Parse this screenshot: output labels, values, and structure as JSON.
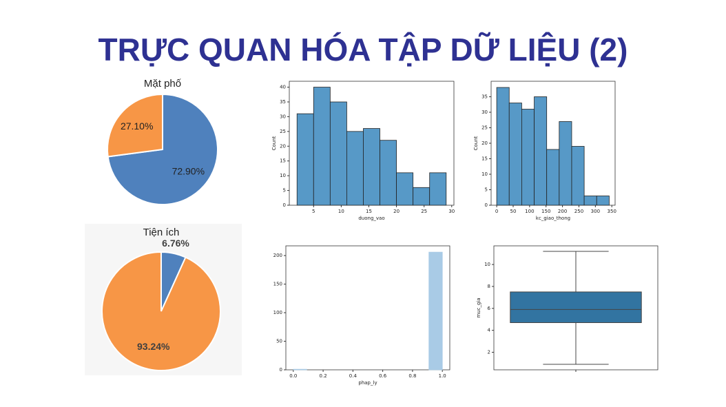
{
  "title": "TRỰC QUAN HÓA TẬP DỮ LIỆU (2)",
  "chart_data": [
    {
      "type": "pie",
      "title": "Mặt phố",
      "values": [
        72.9,
        27.1
      ],
      "value_labels": [
        "72.90%",
        "27.10%"
      ],
      "colors": [
        "#4f81bd",
        "#f79646"
      ]
    },
    {
      "type": "pie",
      "title": "Tiện ích",
      "values": [
        6.76,
        93.24
      ],
      "value_labels": [
        "6.76%",
        "93.24%"
      ],
      "colors": [
        "#4f81bd",
        "#f79646"
      ]
    },
    {
      "type": "histogram",
      "bins": [
        2,
        5,
        8,
        11,
        14,
        17,
        20,
        23,
        26,
        29
      ],
      "values": [
        31,
        40,
        35,
        25,
        26,
        22,
        11,
        6,
        11
      ],
      "color": "#5799c7",
      "edgecolor": "#222222",
      "xlabel": "duong_vao",
      "ylabel": "Count",
      "xlim": [
        0.6,
        30.4
      ],
      "xticks": [
        5,
        10,
        15,
        20,
        25,
        30
      ],
      "ylim": [
        0,
        42
      ],
      "yticks": [
        0,
        5,
        10,
        15,
        20,
        25,
        30,
        35,
        40
      ]
    },
    {
      "type": "histogram",
      "bins": [
        0,
        38,
        76,
        114,
        152,
        190,
        228,
        266,
        304,
        342
      ],
      "values": [
        38,
        33,
        31,
        35,
        18,
        27,
        19,
        3,
        3
      ],
      "color": "#5799c7",
      "edgecolor": "#222222",
      "xlabel": "kc_giao_thong",
      "ylabel": "Count",
      "xlim": [
        -17,
        360
      ],
      "xticks": [
        0,
        50,
        100,
        150,
        200,
        250,
        300,
        350
      ],
      "ylim": [
        0,
        40
      ],
      "yticks": [
        0,
        5,
        10,
        15,
        20,
        25,
        30,
        35
      ]
    },
    {
      "type": "histogram",
      "bins": [
        0,
        0.09,
        0.18,
        0.27,
        0.36,
        0.45,
        0.55,
        0.64,
        0.73,
        0.82,
        0.91,
        1.0
      ],
      "values": [
        1,
        0,
        0,
        0,
        0,
        0,
        0,
        0,
        0,
        0,
        206
      ],
      "color": "#a9cbe6",
      "edgecolor": "#a9cbe6",
      "xlabel": "phap_ly",
      "xlim": [
        -0.05,
        1.05
      ],
      "xticks": [
        {
          "value": 0,
          "label": "0.0"
        },
        {
          "value": 0.2,
          "label": "0.2"
        },
        {
          "value": 0.4,
          "label": "0.4"
        },
        {
          "value": 0.6,
          "label": "0.6"
        },
        {
          "value": 0.8,
          "label": "0.8"
        },
        {
          "value": 1,
          "label": "1.0"
        }
      ],
      "ylim": [
        0,
        217
      ],
      "yticks": [
        0,
        50,
        100,
        150,
        200
      ]
    },
    {
      "type": "box",
      "whislo": 0.9,
      "q1": 4.7,
      "median": 5.9,
      "q3": 7.5,
      "whishi": 11.2,
      "color": "#3274a1",
      "ylabel": "muc_gia",
      "ylim": [
        0.4,
        11.7
      ],
      "yticks": [
        2,
        4,
        6,
        8,
        10
      ]
    }
  ]
}
